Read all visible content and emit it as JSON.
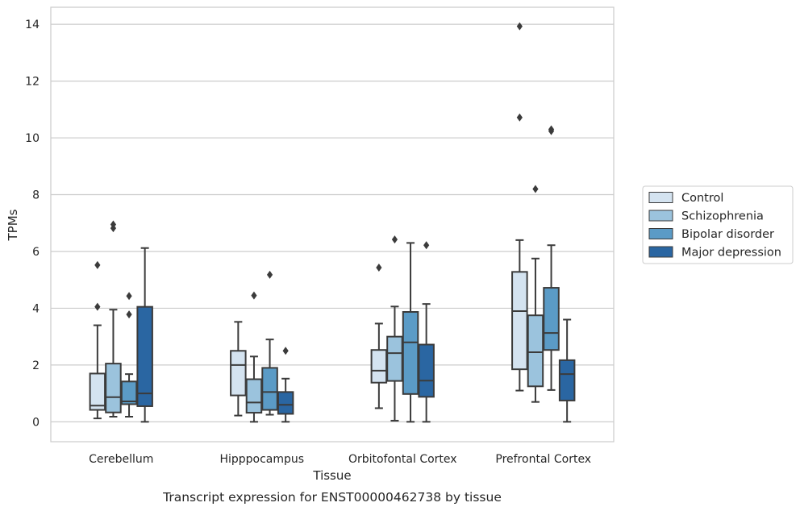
{
  "chart_data": {
    "type": "box",
    "caption": "Transcript expression for ENST00000462738 by tissue",
    "xlabel": "Tissue",
    "ylabel": "TPMs",
    "ylim": [
      -0.7,
      14.6
    ],
    "yticks": [
      0,
      2,
      4,
      6,
      8,
      10,
      12,
      14
    ],
    "grid": true,
    "legend_position": "right",
    "categories": [
      "Cerebellum",
      "Hipppocampus",
      "Orbitofontal Cortex",
      "Prefrontal Cortex"
    ],
    "series": [
      {
        "name": "Control",
        "color": "#d4e3f0",
        "boxes": [
          {
            "whisker_low": 0.12,
            "q1": 0.42,
            "median": 0.57,
            "q3": 1.7,
            "whisker_high": 3.4,
            "outliers": [
              4.05,
              5.52
            ]
          },
          {
            "whisker_low": 0.22,
            "q1": 0.93,
            "median": 2.0,
            "q3": 2.5,
            "whisker_high": 3.52,
            "outliers": []
          },
          {
            "whisker_low": 0.48,
            "q1": 1.38,
            "median": 1.8,
            "q3": 2.53,
            "whisker_high": 3.46,
            "outliers": [
              5.43
            ]
          },
          {
            "whisker_low": 1.1,
            "q1": 1.85,
            "median": 3.9,
            "q3": 5.28,
            "whisker_high": 6.4,
            "outliers": [
              10.72,
              13.93
            ]
          }
        ]
      },
      {
        "name": "Schizophrenia",
        "color": "#9bc3dd",
        "boxes": [
          {
            "whisker_low": 0.18,
            "q1": 0.33,
            "median": 0.87,
            "q3": 2.05,
            "whisker_high": 3.95,
            "outliers": [
              6.82,
              6.95
            ]
          },
          {
            "whisker_low": 0.0,
            "q1": 0.32,
            "median": 0.68,
            "q3": 1.5,
            "whisker_high": 2.3,
            "outliers": [
              4.45
            ]
          },
          {
            "whisker_low": 0.04,
            "q1": 1.44,
            "median": 2.42,
            "q3": 3.0,
            "whisker_high": 4.06,
            "outliers": [
              6.42
            ]
          },
          {
            "whisker_low": 0.7,
            "q1": 1.25,
            "median": 2.45,
            "q3": 3.75,
            "whisker_high": 5.75,
            "outliers": [
              8.2
            ]
          }
        ]
      },
      {
        "name": "Bipolar disorder",
        "color": "#5b9bc6",
        "boxes": [
          {
            "whisker_low": 0.18,
            "q1": 0.62,
            "median": 0.72,
            "q3": 1.42,
            "whisker_high": 1.68,
            "outliers": [
              3.78,
              4.43
            ]
          },
          {
            "whisker_low": 0.25,
            "q1": 0.42,
            "median": 1.05,
            "q3": 1.9,
            "whisker_high": 2.9,
            "outliers": [
              5.18
            ]
          },
          {
            "whisker_low": 0.0,
            "q1": 0.98,
            "median": 2.8,
            "q3": 3.87,
            "whisker_high": 6.3,
            "outliers": []
          },
          {
            "whisker_low": 1.12,
            "q1": 2.53,
            "median": 3.13,
            "q3": 4.72,
            "whisker_high": 6.22,
            "outliers": [
              10.24,
              10.3
            ]
          }
        ]
      },
      {
        "name": "Major depression",
        "color": "#2a66a2",
        "boxes": [
          {
            "whisker_low": 0.0,
            "q1": 0.55,
            "median": 1.0,
            "q3": 4.05,
            "whisker_high": 6.12,
            "outliers": []
          },
          {
            "whisker_low": 0.0,
            "q1": 0.28,
            "median": 0.6,
            "q3": 1.05,
            "whisker_high": 1.52,
            "outliers": [
              2.5
            ]
          },
          {
            "whisker_low": 0.0,
            "q1": 0.88,
            "median": 1.45,
            "q3": 2.72,
            "whisker_high": 4.15,
            "outliers": [
              6.22
            ]
          },
          {
            "whisker_low": 0.0,
            "q1": 0.75,
            "median": 1.68,
            "q3": 2.17,
            "whisker_high": 3.6,
            "outliers": []
          }
        ]
      }
    ]
  }
}
